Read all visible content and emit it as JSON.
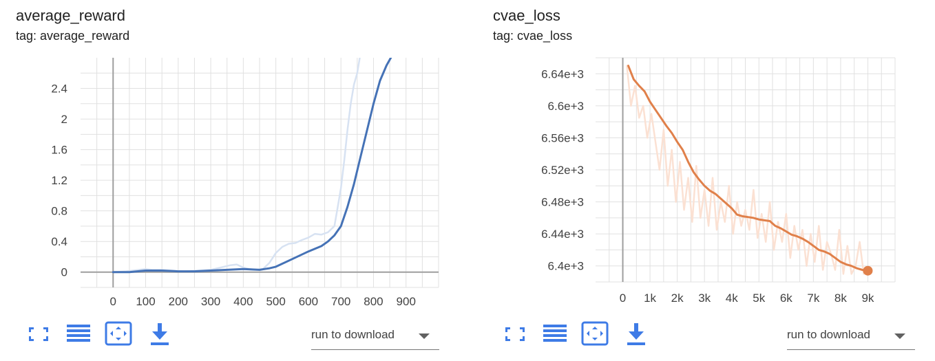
{
  "chart_data": [
    {
      "type": "line",
      "title": "average_reward",
      "subtitle": "tag: average_reward",
      "xlim": [
        -100,
        1000
      ],
      "ylim": [
        -0.2,
        2.8
      ],
      "xticks": [
        0,
        100,
        200,
        300,
        400,
        500,
        600,
        700,
        800,
        900
      ],
      "xtick_labels": [
        "0",
        "100",
        "200",
        "300",
        "400",
        "500",
        "600",
        "700",
        "800",
        "900"
      ],
      "yticks": [
        0,
        0.4,
        0.8,
        1.2,
        1.6,
        2,
        2.4
      ],
      "ytick_labels": [
        "0",
        "0.4",
        "0.8",
        "1.2",
        "1.6",
        "2",
        "2.4"
      ],
      "grid": true,
      "colors": {
        "smoothed": "#4572b6",
        "raw": "#d7e2f2",
        "axis": "#9e9e9e",
        "grid": "#e0e0e0"
      },
      "series": [
        {
          "role": "raw",
          "x": [
            0,
            40,
            80,
            100,
            120,
            150,
            180,
            220,
            260,
            300,
            330,
            360,
            380,
            400,
            420,
            440,
            460,
            480,
            500,
            520,
            540,
            560,
            580,
            600,
            620,
            640,
            660,
            680,
            690,
            700,
            710,
            720,
            730,
            740,
            750,
            760
          ],
          "y": [
            0.0,
            0.01,
            0.03,
            0.04,
            0.03,
            0.03,
            0.02,
            0.01,
            0.02,
            0.03,
            0.06,
            0.09,
            0.1,
            0.06,
            0.04,
            0.03,
            0.04,
            0.12,
            0.25,
            0.33,
            0.37,
            0.38,
            0.42,
            0.45,
            0.5,
            0.49,
            0.52,
            0.6,
            0.85,
            1.1,
            1.45,
            1.85,
            2.2,
            2.45,
            2.6,
            2.85
          ]
        },
        {
          "role": "smoothed",
          "x": [
            0,
            50,
            100,
            150,
            200,
            250,
            300,
            350,
            400,
            450,
            480,
            500,
            550,
            600,
            640,
            660,
            680,
            700,
            720,
            740,
            760,
            780,
            800,
            820,
            840,
            860
          ],
          "y": [
            0.0,
            0.0,
            0.02,
            0.02,
            0.01,
            0.01,
            0.02,
            0.03,
            0.04,
            0.03,
            0.05,
            0.07,
            0.17,
            0.27,
            0.34,
            0.4,
            0.48,
            0.6,
            0.85,
            1.15,
            1.5,
            1.85,
            2.2,
            2.5,
            2.7,
            2.85
          ]
        }
      ]
    },
    {
      "type": "line",
      "title": "cvae_loss",
      "subtitle": "tag: cvae_loss",
      "xlim": [
        -1000,
        10000
      ],
      "ylim": [
        6380,
        6660
      ],
      "xticks": [
        0,
        1000,
        2000,
        3000,
        4000,
        5000,
        6000,
        7000,
        8000,
        9000
      ],
      "xtick_labels": [
        "0",
        "1k",
        "2k",
        "3k",
        "4k",
        "5k",
        "6k",
        "7k",
        "8k",
        "9k"
      ],
      "yticks": [
        6400,
        6440,
        6480,
        6520,
        6560,
        6600,
        6640
      ],
      "ytick_labels": [
        "6.4e+3",
        "6.44e+3",
        "6.48e+3",
        "6.52e+3",
        "6.56e+3",
        "6.6e+3",
        "6.64e+3"
      ],
      "grid": true,
      "colors": {
        "smoothed": "#e0804a",
        "raw": "#fbe1d3",
        "axis": "#9e9e9e",
        "grid": "#e0e0e0"
      },
      "series": [
        {
          "role": "raw",
          "x": [
            150,
            300,
            450,
            600,
            750,
            900,
            1050,
            1200,
            1350,
            1500,
            1650,
            1800,
            1950,
            2100,
            2250,
            2400,
            2550,
            2700,
            2850,
            3000,
            3150,
            3300,
            3450,
            3600,
            3750,
            3900,
            4050,
            4200,
            4350,
            4500,
            4650,
            4800,
            4950,
            5100,
            5250,
            5400,
            5550,
            5700,
            5850,
            6000,
            6150,
            6300,
            6450,
            6600,
            6750,
            6900,
            7050,
            7200,
            7350,
            7500,
            7650,
            7800,
            7950,
            8100,
            8250,
            8400,
            8550,
            8700,
            8850,
            9000
          ],
          "y": [
            6650,
            6600,
            6625,
            6585,
            6600,
            6560,
            6590,
            6555,
            6520,
            6570,
            6500,
            6545,
            6480,
            6530,
            6470,
            6510,
            6455,
            6525,
            6460,
            6495,
            6450,
            6510,
            6445,
            6480,
            6455,
            6500,
            6440,
            6480,
            6450,
            6470,
            6445,
            6495,
            6435,
            6465,
            6430,
            6480,
            6420,
            6455,
            6430,
            6465,
            6410,
            6450,
            6420,
            6445,
            6400,
            6440,
            6405,
            6450,
            6395,
            6430,
            6415,
            6395,
            6445,
            6390,
            6425,
            6390,
            6400,
            6430,
            6390,
            6395
          ]
        },
        {
          "role": "smoothed",
          "x": [
            200,
            400,
            600,
            800,
            1000,
            1200,
            1400,
            1600,
            1800,
            2000,
            2200,
            2400,
            2600,
            2800,
            3000,
            3200,
            3400,
            3600,
            3800,
            4000,
            4200,
            4400,
            4600,
            4800,
            5000,
            5200,
            5400,
            5600,
            5800,
            6000,
            6200,
            6400,
            6600,
            6800,
            7000,
            7200,
            7400,
            7600,
            7800,
            8000,
            8200,
            8400,
            8600,
            8800,
            9000
          ],
          "y": [
            6650,
            6633,
            6625,
            6618,
            6605,
            6595,
            6585,
            6575,
            6566,
            6555,
            6545,
            6530,
            6517,
            6508,
            6500,
            6494,
            6490,
            6484,
            6478,
            6472,
            6464,
            6462,
            6461,
            6460,
            6458,
            6457,
            6456,
            6450,
            6447,
            6443,
            6439,
            6437,
            6434,
            6430,
            6425,
            6420,
            6418,
            6415,
            6410,
            6405,
            6402,
            6400,
            6397,
            6395,
            6394
          ]
        }
      ]
    }
  ],
  "toolbar": {
    "icons": [
      "fullscreen-icon",
      "data-table-icon",
      "fit-domain-icon",
      "download-icon"
    ],
    "download_label": "run to download"
  }
}
